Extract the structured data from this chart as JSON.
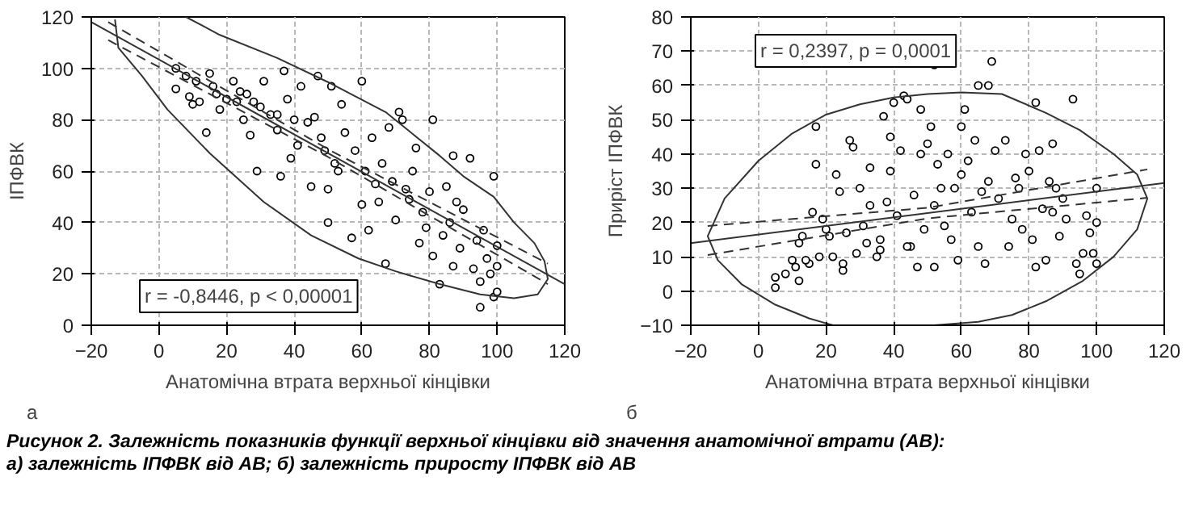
{
  "chart_data": [
    {
      "type": "scatter",
      "xlabel": "Анатомічна втрата верхньої кінцівки",
      "ylabel": "ІПФВК",
      "xlim": [
        -20,
        120
      ],
      "xticks": [
        -20,
        0,
        20,
        40,
        60,
        80,
        100,
        120
      ],
      "ylim": [
        0,
        120
      ],
      "yticks": [
        0,
        20,
        40,
        60,
        80,
        100,
        120
      ],
      "grid": true,
      "annotations": [
        "r = -0,8446, p < 0,00001",
        "а",
        "Рисунок 2. Залежність показників функції верхньої кінцівки від значення анатомічної втрати (АВ):\nа) залежність ІПФВК від АВ; б) залежність приросту ІПФВК від АВ"
      ],
      "series": [
        {
          "marker": "circle",
          "color": "#000000",
          "x": [
            5,
            5,
            8,
            9,
            10,
            11,
            12,
            14,
            15,
            16,
            17,
            18,
            20,
            22,
            23,
            25,
            26,
            27,
            29,
            30,
            31,
            33,
            35,
            36,
            37,
            38,
            39,
            40,
            41,
            42,
            44,
            45,
            47,
            48,
            49,
            50,
            50,
            51,
            52,
            54,
            55,
            57,
            58,
            60,
            60,
            61,
            62,
            63,
            65,
            66,
            67,
            68,
            69,
            70,
            71,
            72,
            74,
            75,
            76,
            77,
            78,
            80,
            81,
            81,
            83,
            84,
            85,
            87,
            87,
            89,
            90,
            92,
            93,
            94,
            95,
            95,
            96,
            97,
            98,
            99,
            99,
            100,
            100,
            100,
            46,
            35,
            28,
            24,
            53,
            64,
            73,
            79,
            86,
            88
          ],
          "values": [
            100,
            92,
            97,
            89,
            86,
            95,
            87,
            75,
            98,
            93,
            90,
            84,
            88,
            95,
            87,
            80,
            90,
            74,
            60,
            85,
            95,
            82,
            76,
            58,
            99,
            88,
            65,
            80,
            70,
            93,
            79,
            54,
            97,
            73,
            68,
            40,
            53,
            93,
            63,
            86,
            75,
            34,
            68,
            95,
            47,
            60,
            37,
            73,
            48,
            63,
            24,
            77,
            56,
            41,
            83,
            80,
            49,
            60,
            69,
            32,
            44,
            52,
            80,
            27,
            16,
            35,
            54,
            66,
            23,
            30,
            45,
            65,
            22,
            33,
            17,
            7,
            37,
            26,
            20,
            58,
            11,
            31,
            23,
            13,
            81,
            82,
            87,
            91,
            60,
            55,
            53,
            38,
            40,
            48
          ]
        },
        {
          "type": "line",
          "color": "#333333",
          "line_style": "solid",
          "x": [
            -20,
            120
          ],
          "values": [
            118,
            16
          ]
        },
        {
          "type": "line",
          "color": "#333333",
          "line_style": "dashed",
          "x": [
            -15,
            50,
            115
          ],
          "values": [
            118,
            68.5,
            24
          ]
        },
        {
          "type": "line",
          "color": "#333333",
          "line_style": "dashed",
          "x": [
            -15,
            50,
            115
          ],
          "values": [
            111,
            65.5,
            16
          ]
        },
        {
          "type": "line",
          "color": "#333333",
          "line_style": "solid",
          "x": [
            -13,
            -12,
            -5,
            2.5,
            15,
            31,
            45,
            59,
            70,
            83,
            95,
            105,
            112,
            115,
            114,
            111,
            105,
            99,
            90,
            83,
            67,
            51,
            35,
            18,
            8
          ],
          "values": [
            119,
            108,
            97,
            84,
            67,
            48,
            35,
            26,
            21,
            16,
            12,
            10.5,
            12,
            18,
            25,
            32,
            40,
            50,
            58,
            66,
            83,
            94,
            104,
            113,
            120
          ]
        }
      ]
    },
    {
      "type": "scatter",
      "xlabel": "Анатомічна втрата верхньої кінцівки",
      "ylabel": "Приріст ІПФВК",
      "xlim": [
        -20,
        120
      ],
      "xticks": [
        -20,
        0,
        20,
        40,
        60,
        80,
        100,
        120
      ],
      "ylim": [
        -10,
        80
      ],
      "yticks": [
        -10,
        0,
        10,
        20,
        30,
        40,
        50,
        60,
        70,
        80
      ],
      "grid": true,
      "annotations": [
        "r = 0,2397, p = 0,0001",
        "б"
      ],
      "series": [
        {
          "marker": "circle",
          "color": "#000000",
          "x": [
            5,
            5,
            8,
            10,
            11,
            12,
            12,
            13,
            15,
            16,
            17,
            17,
            18,
            19,
            20,
            21,
            22,
            23,
            24,
            25,
            26,
            27,
            28,
            29,
            30,
            31,
            33,
            33,
            35,
            36,
            37,
            38,
            39,
            39,
            40,
            41,
            42,
            43,
            44,
            45,
            46,
            47,
            48,
            48,
            49,
            50,
            51,
            52,
            52,
            53,
            52,
            54,
            55,
            56,
            58,
            59,
            60,
            60,
            61,
            62,
            63,
            64,
            65,
            65,
            66,
            67,
            68,
            68,
            70,
            71,
            69,
            73,
            74,
            75,
            76,
            77,
            78,
            79,
            80,
            81,
            82,
            82,
            83,
            84,
            85,
            86,
            87,
            87,
            88,
            89,
            90,
            91,
            93,
            94,
            95,
            96,
            97,
            98,
            99,
            100,
            100,
            100,
            57,
            44,
            36,
            32,
            25,
            14
          ],
          "values": [
            1,
            4,
            5,
            9,
            7,
            3,
            14,
            16,
            8,
            23,
            48,
            37,
            10,
            21,
            18,
            16,
            10,
            34,
            29,
            6,
            17,
            44,
            42,
            11,
            30,
            19,
            36,
            25,
            10,
            15,
            51,
            26,
            45,
            35,
            55,
            22,
            41,
            57,
            56,
            13,
            28,
            7,
            53,
            40,
            18,
            43,
            48,
            25,
            7,
            37,
            66,
            30,
            19,
            40,
            30,
            9,
            48,
            34,
            53,
            38,
            23,
            44,
            60,
            13,
            29,
            8,
            60,
            32,
            41,
            27,
            67,
            44,
            13,
            21,
            33,
            30,
            18,
            40,
            35,
            15,
            55,
            7,
            41,
            24,
            9,
            32,
            43,
            23,
            30,
            16,
            27,
            21,
            56,
            8,
            5,
            11,
            22,
            17,
            11,
            30,
            8,
            20,
            15,
            13,
            12,
            14,
            8,
            9
          ]
        },
        {
          "type": "line",
          "color": "#333333",
          "line_style": "solid",
          "x": [
            -20,
            120
          ],
          "values": [
            14,
            31.5
          ]
        },
        {
          "type": "line",
          "color": "#333333",
          "line_style": "dashed",
          "x": [
            -15,
            50,
            115
          ],
          "values": [
            19,
            24.3,
            35.5
          ]
        },
        {
          "type": "line",
          "color": "#333333",
          "line_style": "dashed",
          "x": [
            -15,
            50,
            115
          ],
          "values": [
            10.5,
            21.2,
            27.2
          ]
        },
        {
          "type": "line",
          "color": "#333333",
          "line_style": "solid",
          "x": [
            52,
            65,
            75,
            85,
            96,
            105,
            112,
            115,
            112,
            105,
            95,
            85,
            72,
            60,
            50,
            40,
            30,
            20,
            10,
            0,
            -10,
            -15,
            -12,
            -5,
            5,
            15,
            22
          ],
          "values": [
            -10,
            -9,
            -7,
            -3,
            3,
            10,
            18,
            27,
            34,
            40,
            47,
            52,
            57.5,
            58,
            57.5,
            56.5,
            54.5,
            51.5,
            46,
            38,
            27,
            16,
            9,
            2,
            -4,
            -8,
            -10
          ]
        }
      ]
    }
  ]
}
